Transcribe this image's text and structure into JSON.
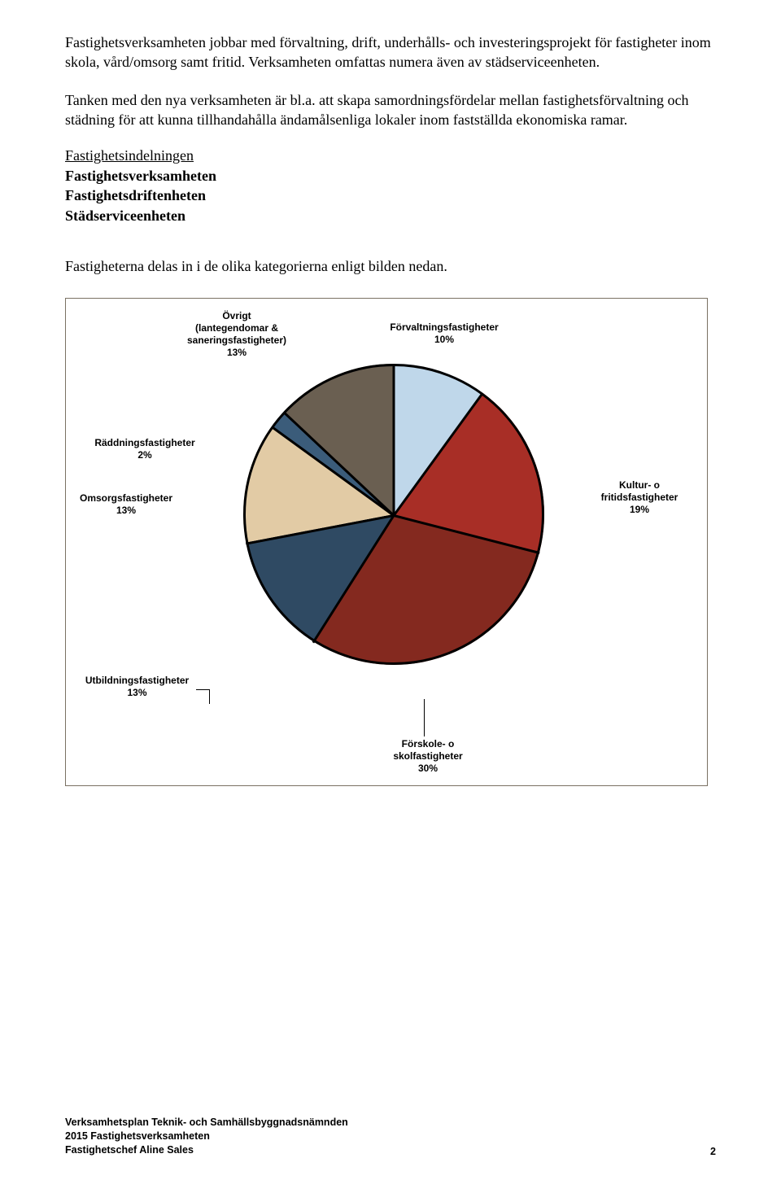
{
  "paragraph1": "Fastighetsverksamheten jobbar med förvaltning, drift, underhålls- och investeringsprojekt för fastigheter inom skola, vård/omsorg samt fritid. Verksamheten omfattas numera även av städserviceenheten.",
  "paragraph2": "Tanken med den nya verksamheten är bl.a. att skapa samordningsfördelar mellan fastighetsförvaltning och städning för att kunna tillhandahålla ändamålsenliga lokaler inom fastställda ekonomiska ramar.",
  "section_heading": "Fastighetsindelningen",
  "bold_lines": {
    "l1": "Fastighetsverksamheten",
    "l2": "Fastighetsdriftenheten",
    "l3": "Städserviceenheten"
  },
  "sentence": "Fastigheterna delas in i de olika kategorierna enligt bilden nedan.",
  "chart": {
    "type": "pie",
    "background_color": "#ffffff",
    "border_color": "#7a7163",
    "slice_border_color": "#000000",
    "slices": [
      {
        "label_l1": "Förvaltningsfastigheter",
        "label_l2": "10%",
        "value": 10,
        "color": "#bfd7ea"
      },
      {
        "label_l1": "Kultur- o",
        "label_l2": "fritidsfastigheter",
        "label_l3": "19%",
        "value": 19,
        "color": "#a82e26"
      },
      {
        "label_l1": "Förskole- o",
        "label_l2": "skolfastigheter",
        "label_l3": "30%",
        "value": 30,
        "color": "#84291f"
      },
      {
        "label_l1": "Utbildningsfastigheter",
        "label_l2": "13%",
        "value": 13,
        "color": "#2f4a63"
      },
      {
        "label_l1": "Omsorgsfastigheter",
        "label_l2": "13%",
        "value": 13,
        "color": "#e2cba5"
      },
      {
        "label_l1": "Räddningsfastigheter",
        "label_l2": "2%",
        "value": 2,
        "color": "#3b5c7a"
      },
      {
        "label_l1": "Övrigt",
        "label_l2": "(lantegendomar &",
        "label_l3": "saneringsfastigheter)",
        "label_l4": "13%",
        "value": 13,
        "color": "#6a5f51"
      }
    ],
    "label_fontsize": 12,
    "label_font": "Arial"
  },
  "footer": {
    "l1": "Verksamhetsplan Teknik- och Samhällsbyggnadsnämnden",
    "l2": "2015 Fastighetsverksamheten",
    "l3": "Fastighetschef Aline Sales"
  },
  "page_number": "2"
}
